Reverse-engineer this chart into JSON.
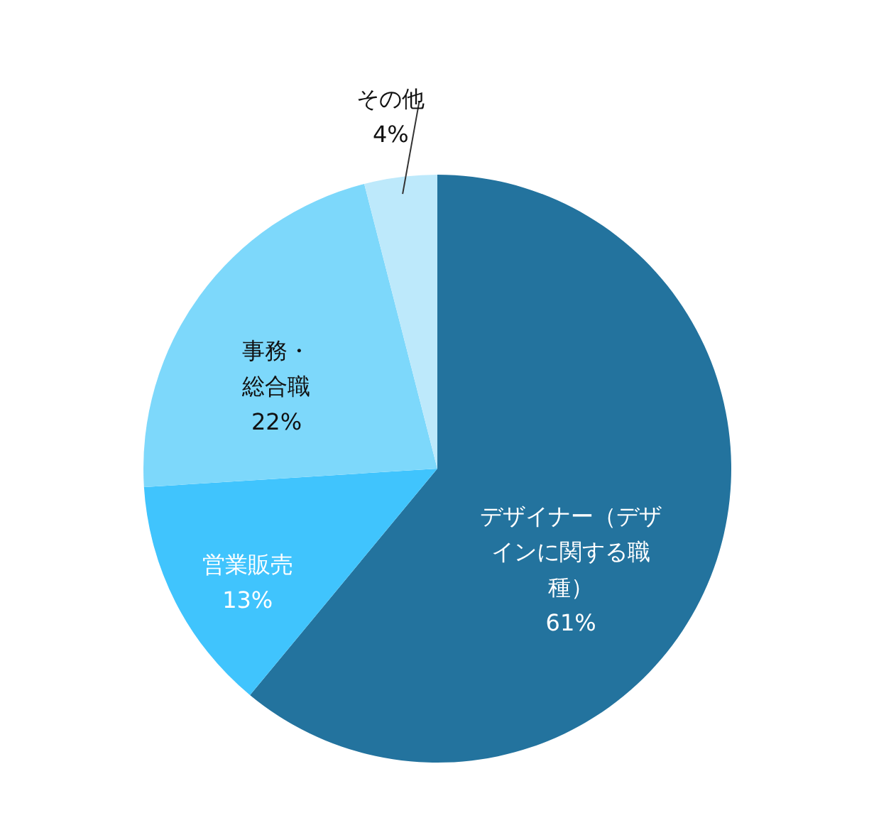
{
  "chart_data": {
    "type": "pie",
    "categories": [
      "デザイナー（デザインに関する職種）",
      "営業販売",
      "事務・総合職",
      "その他"
    ],
    "values": [
      61,
      13,
      22,
      4
    ],
    "value_labels": [
      "61%",
      "13%",
      "22%",
      "4%"
    ],
    "colors": [
      "#23739e",
      "#40c4fd",
      "#7dd8fb",
      "#bde9fb"
    ]
  }
}
